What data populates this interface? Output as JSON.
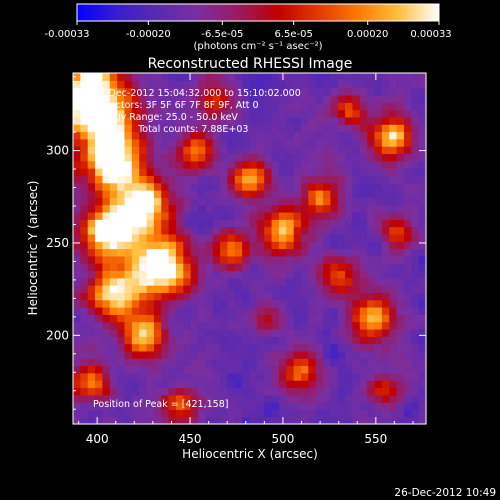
{
  "chart_data": {
    "type": "heatmap",
    "title": "Reconstructed RHESSI Image",
    "colorbar": {
      "range": [
        -0.00033,
        0.00033
      ],
      "tick_values": [
        -0.00033,
        -0.0002,
        -6.5e-05,
        6.5e-05,
        0.0002,
        0.00033
      ],
      "tick_labels": [
        "-0.00033",
        "-0.00020",
        "-6.5e-05",
        "6.5e-05",
        "0.00020",
        "0.00033"
      ],
      "units_label": "(photons cm⁻² s⁻¹ asec⁻²)",
      "colors": [
        "#0000ff",
        "#3a1dd0",
        "#5a2ab0",
        "#7a2fa0",
        "#9a1a60",
        "#c00000",
        "#e23a00",
        "#ff7a00",
        "#ffc040",
        "#ffffff"
      ]
    },
    "xlabel": "Heliocentric X (arcsec)",
    "ylabel": "Heliocentric Y (arcsec)",
    "xlim": [
      387,
      577
    ],
    "ylim": [
      152,
      342
    ],
    "xticks": [
      400,
      450,
      500,
      550
    ],
    "yticks": [
      200,
      250,
      300
    ],
    "annotations": [
      "26-Dec-2012 15:04:32.000 to 15:10:02.000",
      "Detectors: 3F 5F 6F 7F 8F 9F, Att 0",
      "Energy Range: 25.0 - 50.0 keV",
      "Clean      Total counts: 7.88E+03"
    ],
    "peak_label": "Position of Peak = [421,158]",
    "peak": [
      421,
      158
    ],
    "grid_cols": 48,
    "grid_rows": 48,
    "seed": 26122012
  },
  "timestamp": "26-Dec-2012 10:49"
}
